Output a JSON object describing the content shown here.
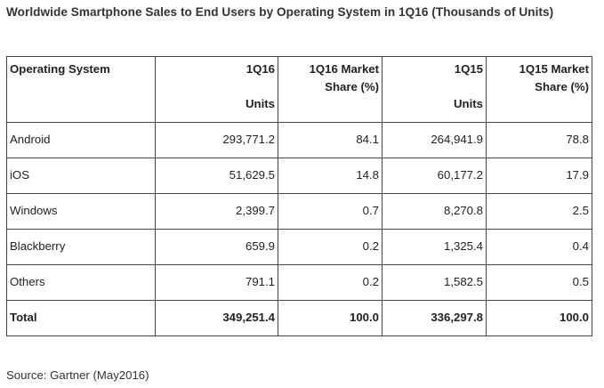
{
  "title": "Worldwide Smartphone Sales to End Users by Operating System in 1Q16 (Thousands of Units)",
  "source": "Source: Gartner (May2016)",
  "chart_data": {
    "type": "table",
    "title": "Worldwide Smartphone Sales to End Users by Operating System in 1Q16 (Thousands of Units)",
    "columns": [
      {
        "line1": "Operating System",
        "line2": ""
      },
      {
        "line1": "1Q16",
        "line2": "Units"
      },
      {
        "line1": "1Q16 Market",
        "line2": "Share (%)"
      },
      {
        "line1": "1Q15",
        "line2": "Units"
      },
      {
        "line1": "1Q15 Market",
        "line2": "Share (%)"
      }
    ],
    "rows": [
      [
        "Android",
        "293,771.2",
        "84.1",
        "264,941.9",
        "78.8"
      ],
      [
        "iOS",
        "51,629.5",
        "14.8",
        "60,177.2",
        "17.9"
      ],
      [
        "Windows",
        "2,399.7",
        "0.7",
        "8,270.8",
        "2.5"
      ],
      [
        "Blackberry",
        "659.9",
        "0.2",
        "1,325.4",
        "0.4"
      ],
      [
        "Others",
        "791.1",
        "0.2",
        "1,582.5",
        "0.5"
      ]
    ],
    "total": [
      "Total",
      "349,251.4",
      "100.0",
      "336,297.8",
      "100.0"
    ]
  }
}
